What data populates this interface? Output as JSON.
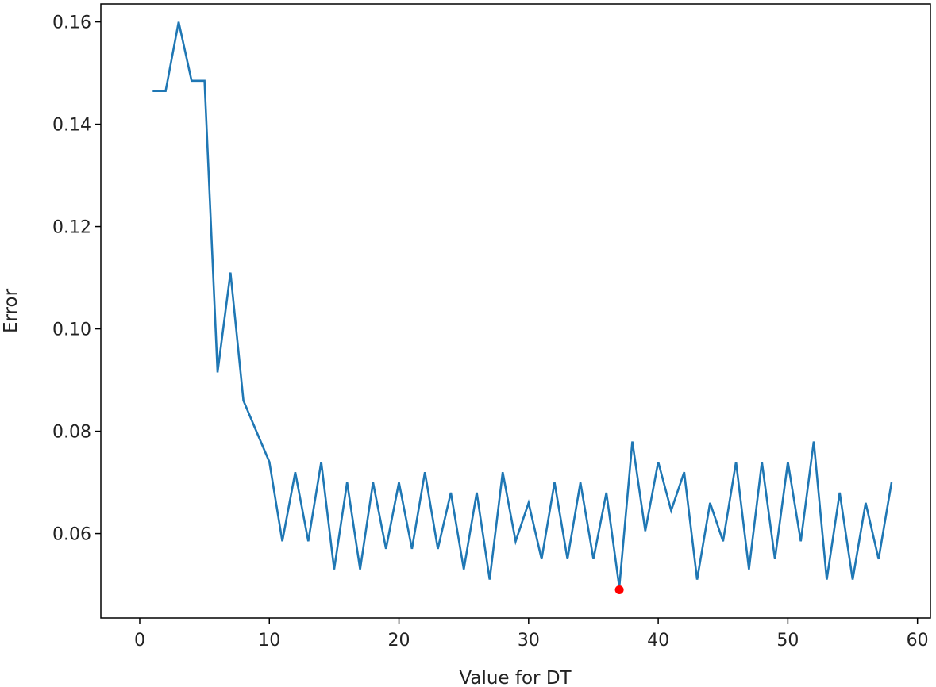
{
  "chart_data": {
    "type": "line",
    "xlabel": "Value for DT",
    "ylabel": "Error",
    "xlim": [
      -3.0,
      61.0
    ],
    "ylim": [
      0.0435,
      0.1635
    ],
    "xticks": [
      0,
      10,
      20,
      30,
      40,
      50,
      60
    ],
    "yticks": [
      0.06,
      0.08,
      0.1,
      0.12,
      0.14,
      0.16
    ],
    "xtick_labels": [
      "0",
      "10",
      "20",
      "30",
      "40",
      "50",
      "60"
    ],
    "ytick_labels": [
      "0.06",
      "0.08",
      "0.10",
      "0.12",
      "0.14",
      "0.16"
    ],
    "grid": false,
    "series": [
      {
        "color": "#1f77b4",
        "x": [
          1,
          2,
          3,
          4,
          5,
          6,
          7,
          8,
          9,
          10,
          11,
          12,
          13,
          14,
          15,
          16,
          17,
          18,
          19,
          20,
          21,
          22,
          23,
          24,
          25,
          26,
          27,
          28,
          29,
          30,
          31,
          32,
          33,
          34,
          35,
          36,
          37,
          38,
          39,
          40,
          41,
          42,
          43,
          44,
          45,
          46,
          47,
          48,
          49,
          50,
          51,
          52,
          53,
          54,
          55,
          56,
          57,
          58
        ],
        "y": [
          0.1465,
          0.1465,
          0.16,
          0.1485,
          0.1485,
          0.0915,
          0.111,
          0.086,
          0.08,
          0.074,
          0.0585,
          0.072,
          0.0585,
          0.074,
          0.053,
          0.07,
          0.053,
          0.07,
          0.057,
          0.07,
          0.057,
          0.072,
          0.057,
          0.068,
          0.053,
          0.068,
          0.051,
          0.072,
          0.0585,
          0.066,
          0.055,
          0.07,
          0.055,
          0.07,
          0.055,
          0.068,
          0.0495,
          0.078,
          0.0605,
          0.074,
          0.0645,
          0.072,
          0.051,
          0.066,
          0.0585,
          0.074,
          0.053,
          0.074,
          0.055,
          0.074,
          0.0585,
          0.078,
          0.051,
          0.068,
          0.051,
          0.066,
          0.055,
          0.07
        ]
      }
    ],
    "highlight_point": {
      "x": 37,
      "y": 0.049,
      "color": "#ff0000"
    }
  }
}
